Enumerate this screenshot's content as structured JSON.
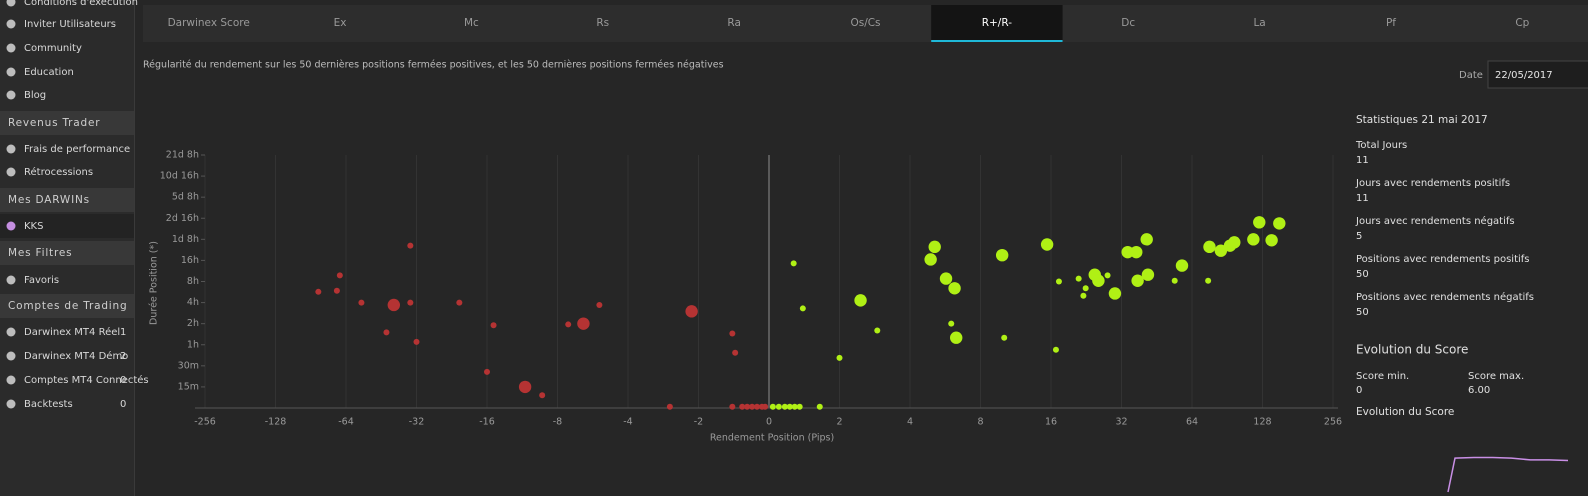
{
  "sidebar": [
    {
      "label": "Conditions d'exécution"
    },
    {
      "label": "Inviter Utilisateurs"
    },
    {
      "label": "Community"
    },
    {
      "label": "Education"
    },
    {
      "label": "Blog"
    },
    {
      "section": "Revenus Trader"
    },
    {
      "label": "Frais de performance"
    },
    {
      "label": "Rétrocessions"
    },
    {
      "section": "Mes DARWINs"
    },
    {
      "label": "KKS"
    },
    {
      "section": "Mes Filtres"
    },
    {
      "label": "Favoris"
    },
    {
      "section": "Comptes de Trading"
    },
    {
      "label": "Darwinex MT4 Réel",
      "count": "1"
    },
    {
      "label": "Darwinex MT4 Démo",
      "count": "2"
    },
    {
      "label": "Comptes MT4 Connectés",
      "count": "0"
    },
    {
      "label": "Backtests",
      "count": "0"
    }
  ],
  "tabs": [
    "Darwinex Score",
    "Ex",
    "Mc",
    "Rs",
    "Ra",
    "Os/Cs",
    "R+/R-",
    "Dc",
    "La",
    "Pf",
    "Cp"
  ],
  "active_tab": 6,
  "description": "Régularité du rendement sur les 50 dernières positions fermées positives, et les 50 dernières positions fermées négatives",
  "date_label": "Date",
  "date_value": "22/05/2017",
  "stats": {
    "title": "Statistiques 21 mai 2017",
    "items": [
      {
        "label": "Total Jours",
        "value": "11"
      },
      {
        "label": "Jours avec rendements positifs",
        "value": "11"
      },
      {
        "label": "Jours avec rendements négatifs",
        "value": "5"
      },
      {
        "label": "Positions avec rendements positifs",
        "value": "50"
      },
      {
        "label": "Positions avec rendements négatifs",
        "value": "50"
      }
    ],
    "evolution_title": "Evolution du Score",
    "score_min_label": "Score min.",
    "score_min": "0",
    "score_max_label": "Score max.",
    "score_max": "6.00",
    "evolution_subtitle": "Evolution du Score"
  },
  "score_chart": {
    "type": "line",
    "color": "#c98fe6",
    "values": [
      0,
      5.5,
      5.6,
      5.6,
      5.5,
      5.2,
      5.2,
      5.1
    ],
    "ylim": [
      0,
      6
    ]
  },
  "chart_data": {
    "type": "scatter",
    "xlabel": "Rendement Position (Pips)",
    "ylabel": "Durée Position (*)",
    "xscale": "symlog",
    "linthresh": 2,
    "yscale": "log",
    "grid": true,
    "xlim": [
      -256,
      256
    ],
    "xticks": [
      -256,
      -128,
      -64,
      -32,
      -16,
      -8,
      -4,
      -2,
      0,
      2,
      4,
      8,
      16,
      32,
      64,
      128,
      256
    ],
    "ylim": [
      0.125,
      512
    ],
    "yticks": [
      {
        "value": 0.25,
        "label": "15m"
      },
      {
        "value": 0.5,
        "label": "30m"
      },
      {
        "value": 1,
        "label": "1h"
      },
      {
        "value": 2,
        "label": "2h"
      },
      {
        "value": 4,
        "label": "4h"
      },
      {
        "value": 8,
        "label": "8h"
      },
      {
        "value": 16,
        "label": "16h"
      },
      {
        "value": 32,
        "label": "1d 8h"
      },
      {
        "value": 64,
        "label": "2d 16h"
      },
      {
        "value": 128,
        "label": "5d 8h"
      },
      {
        "value": 256,
        "label": "10d 16h"
      },
      {
        "value": 512,
        "label": "21d 8h"
      }
    ],
    "series": [
      {
        "color": "#b53333",
        "x": [
          -84,
          -70,
          -68,
          -55,
          -40,
          -34,
          -34,
          -43,
          -32,
          -21,
          -16,
          -15,
          -11,
          -9.3,
          -7.2,
          -6.2,
          -5.3,
          -2.65,
          -2.14,
          -1.04,
          -0.96,
          -1.04,
          -0.76,
          -0.62,
          -0.48,
          -0.34,
          -0.2,
          -0.11
        ],
        "values": [
          5.7,
          5.9,
          9.8,
          4.0,
          3.7,
          26,
          4.0,
          1.5,
          1.1,
          4.0,
          0.41,
          1.9,
          0.25,
          0.19,
          1.95,
          2.0,
          3.7,
          0.13,
          3.0,
          1.45,
          0.77,
          0.13,
          0.13,
          0.13,
          0.13,
          0.13,
          0.13,
          0.13
        ],
        "sizes": [
          1,
          1,
          1,
          1,
          2,
          1,
          1,
          1,
          1,
          1,
          1,
          1,
          2,
          1,
          1,
          2,
          1,
          1,
          2,
          1,
          1,
          1,
          1,
          1,
          1,
          1,
          1,
          1
        ]
      },
      {
        "color": "#b0f015",
        "x": [
          0.7,
          0.96,
          0.11,
          0.28,
          0.45,
          0.59,
          0.73,
          0.87,
          1.44,
          2.0,
          2.46,
          2.9,
          4.9,
          5.1,
          5.7,
          6.0,
          6.2,
          6.3,
          9.9,
          10.1,
          15.4,
          16.8,
          17.3,
          21,
          22,
          22.5,
          24.6,
          25.5,
          27.9,
          30,
          34,
          37,
          37.5,
          41,
          41.5,
          54,
          58,
          75,
          76,
          85,
          93,
          97,
          117,
          124,
          140,
          151
        ],
        "values": [
          14.5,
          3.3,
          0.13,
          0.13,
          0.13,
          0.13,
          0.13,
          0.13,
          0.13,
          0.65,
          4.3,
          1.6,
          16.5,
          25,
          8.8,
          2.0,
          6.4,
          1.26,
          19,
          1.26,
          27,
          0.85,
          8.0,
          8.8,
          5.0,
          6.4,
          10,
          8.2,
          9.8,
          5.4,
          21,
          21,
          8.2,
          32,
          10,
          8.2,
          13.5,
          8.2,
          25,
          22,
          26,
          29,
          32,
          56,
          31,
          54
        ],
        "sizes": [
          1,
          1,
          1,
          1,
          1,
          1,
          1,
          1,
          1,
          1,
          2,
          1,
          2,
          2,
          2,
          1,
          2,
          2,
          2,
          1,
          2,
          1,
          1,
          1,
          1,
          1,
          2,
          2,
          1,
          2,
          2,
          2,
          2,
          2,
          2,
          1,
          2,
          1,
          2,
          2,
          2,
          2,
          2,
          2,
          2,
          2
        ]
      }
    ]
  }
}
